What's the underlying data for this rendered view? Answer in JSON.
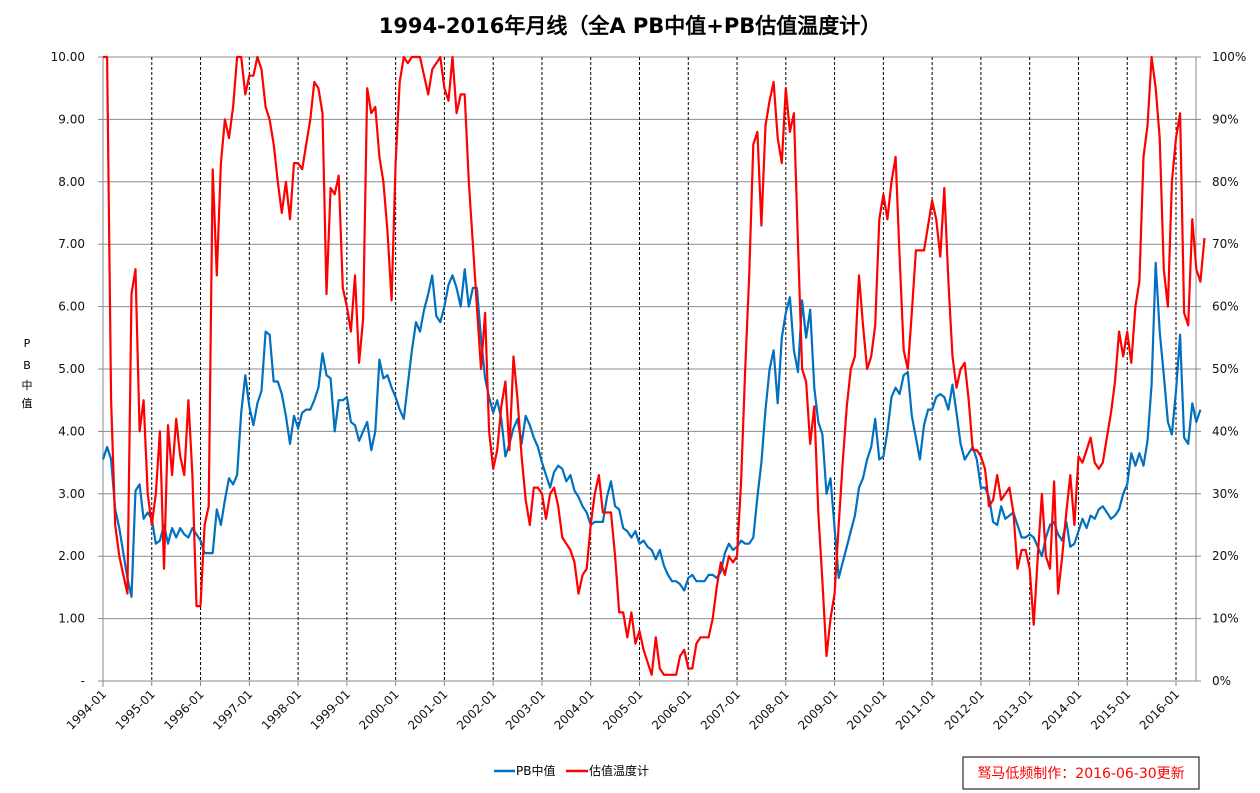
{
  "chart_data": {
    "type": "line",
    "title": "1994-2016年月线（全A PB中值+PB估值温度计）",
    "ylabel": "PB中值",
    "y2label": "",
    "xlabel": "",
    "ylim": [
      0,
      10
    ],
    "y2lim": [
      0,
      100
    ],
    "yticks": [
      "-",
      "1.00",
      "2.00",
      "3.00",
      "4.00",
      "5.00",
      "6.00",
      "7.00",
      "8.00",
      "9.00",
      "10.00"
    ],
    "y2ticks": [
      "0%",
      "10%",
      "20%",
      "30%",
      "40%",
      "50%",
      "60%",
      "70%",
      "80%",
      "90%",
      "100%"
    ],
    "xticks": [
      "1994-01",
      "1995-01",
      "1996-01",
      "1997-01",
      "1998-01",
      "1999-01",
      "2000-01",
      "2001-01",
      "2002-01",
      "2003-01",
      "2004-01",
      "2005-01",
      "2006-01",
      "2007-01",
      "2008-01",
      "2009-01",
      "2010-01",
      "2011-01",
      "2012-01",
      "2013-01",
      "2014-01",
      "2015-01",
      "2016-01"
    ],
    "x_start": "1994-01",
    "x_end": "2016-06",
    "grid": "horizontal solid, vertical dashed at each year",
    "legend": "bottom-center",
    "series": [
      {
        "name": "PB中值",
        "axis": "left",
        "color": "#0070c0",
        "values": [
          3.55,
          3.75,
          3.55,
          2.75,
          2.45,
          2.05,
          1.65,
          1.35,
          3.05,
          3.15,
          2.6,
          2.7,
          2.6,
          2.2,
          2.25,
          2.5,
          2.2,
          2.45,
          2.3,
          2.45,
          2.35,
          2.3,
          2.45,
          2.35,
          2.25,
          2.05,
          2.05,
          2.05,
          2.75,
          2.5,
          2.9,
          3.25,
          3.15,
          3.3,
          4.3,
          4.9,
          4.4,
          4.1,
          4.45,
          4.65,
          5.6,
          5.55,
          4.8,
          4.8,
          4.6,
          4.25,
          3.8,
          4.25,
          4.05,
          4.3,
          4.35,
          4.35,
          4.5,
          4.7,
          5.25,
          4.9,
          4.85,
          4.0,
          4.5,
          4.5,
          4.55,
          4.15,
          4.1,
          3.85,
          4.0,
          4.15,
          3.7,
          4.0,
          5.15,
          4.85,
          4.9,
          4.7,
          4.55,
          4.35,
          4.2,
          4.75,
          5.3,
          5.75,
          5.6,
          5.95,
          6.2,
          6.5,
          5.85,
          5.75,
          6.0,
          6.35,
          6.5,
          6.3,
          6.0,
          6.6,
          6.0,
          6.3,
          6.3,
          5.5,
          4.85,
          4.55,
          4.3,
          4.5,
          4.2,
          3.6,
          3.8,
          4.05,
          4.2,
          3.8,
          4.25,
          4.1,
          3.9,
          3.75,
          3.5,
          3.3,
          3.1,
          3.35,
          3.45,
          3.4,
          3.2,
          3.3,
          3.05,
          2.95,
          2.8,
          2.7,
          2.5,
          2.55,
          2.55,
          2.55,
          2.95,
          3.2,
          2.8,
          2.75,
          2.45,
          2.4,
          2.3,
          2.4,
          2.2,
          2.25,
          2.15,
          2.1,
          1.95,
          2.1,
          1.85,
          1.7,
          1.6,
          1.6,
          1.55,
          1.45,
          1.65,
          1.7,
          1.6,
          1.6,
          1.6,
          1.7,
          1.7,
          1.65,
          1.75,
          2.05,
          2.2,
          2.1,
          2.15,
          2.25,
          2.2,
          2.2,
          2.3,
          2.95,
          3.5,
          4.35,
          5.0,
          5.3,
          4.45,
          5.5,
          5.9,
          6.15,
          5.3,
          4.95,
          6.1,
          5.5,
          5.95,
          4.7,
          4.15,
          3.95,
          3.0,
          3.25,
          2.45,
          1.65,
          1.9,
          2.15,
          2.4,
          2.65,
          3.1,
          3.25,
          3.55,
          3.75,
          4.2,
          3.55,
          3.6,
          4.0,
          4.55,
          4.7,
          4.6,
          4.9,
          4.95,
          4.25,
          3.9,
          3.55,
          4.1,
          4.35,
          4.35,
          4.55,
          4.6,
          4.55,
          4.35,
          4.75,
          4.3,
          3.8,
          3.55,
          3.65,
          3.75,
          3.55,
          3.1,
          3.1,
          2.95,
          2.55,
          2.5,
          2.8,
          2.6,
          2.65,
          2.7,
          2.5,
          2.3,
          2.3,
          2.35,
          2.3,
          2.15,
          2.0,
          2.3,
          2.5,
          2.55,
          2.35,
          2.25,
          2.55,
          2.15,
          2.2,
          2.4,
          2.6,
          2.45,
          2.65,
          2.6,
          2.75,
          2.8,
          2.7,
          2.6,
          2.65,
          2.75,
          3.0,
          3.15,
          3.65,
          3.45,
          3.65,
          3.45,
          3.85,
          4.75,
          6.7,
          5.6,
          4.9,
          4.15,
          3.95,
          4.65,
          5.55,
          3.9,
          3.8,
          4.45,
          4.15,
          4.35
        ]
      },
      {
        "name": "估值温度计",
        "axis": "right",
        "color": "#ff0000",
        "values": [
          100,
          100,
          45,
          25,
          20,
          17,
          14,
          62,
          66,
          40,
          45,
          30,
          25,
          30,
          40,
          18,
          41,
          33,
          42,
          36,
          33,
          45,
          33,
          12,
          12,
          25,
          28,
          82,
          65,
          83,
          90,
          87,
          92,
          100,
          100,
          94,
          97,
          97,
          100,
          98,
          92,
          90,
          86,
          80,
          75,
          80,
          74,
          83,
          83,
          82,
          86,
          90,
          96,
          95,
          91,
          62,
          79,
          78,
          81,
          63,
          60,
          56,
          65,
          51,
          58,
          95,
          91,
          92,
          84,
          80,
          72,
          61,
          83,
          96,
          100,
          99,
          100,
          100,
          100,
          97,
          94,
          98,
          99,
          100,
          95,
          93,
          100,
          91,
          94,
          94,
          80,
          70,
          60,
          50,
          59,
          40,
          34,
          37,
          44,
          48,
          37,
          52,
          45,
          36,
          29,
          25,
          31,
          31,
          30,
          26,
          30,
          31,
          28,
          23,
          22,
          21,
          19,
          14,
          17,
          18,
          25,
          30,
          33,
          27,
          27,
          27,
          20,
          11,
          11,
          7,
          11,
          6,
          8,
          5,
          3,
          1,
          7,
          2,
          1,
          1,
          1,
          1,
          4,
          5,
          2,
          2,
          6,
          7,
          7,
          7,
          10,
          15,
          19,
          17,
          20,
          19,
          20,
          32,
          50,
          65,
          86,
          88,
          73,
          89,
          93,
          96,
          87,
          83,
          95,
          88,
          91,
          70,
          50,
          48,
          38,
          44,
          27,
          16,
          4,
          10,
          14,
          25,
          35,
          44,
          50,
          52,
          65,
          57,
          50,
          52,
          57,
          74,
          78,
          74,
          80,
          84,
          68,
          53,
          50,
          59,
          69,
          69,
          69,
          73,
          77,
          74,
          68,
          79,
          64,
          52,
          47,
          50,
          51,
          45,
          37,
          37,
          36,
          34,
          28,
          29,
          33,
          29,
          30,
          31,
          27,
          18,
          21,
          21,
          18,
          9,
          20,
          30,
          20,
          18,
          32,
          14,
          20,
          27,
          33,
          25,
          36,
          35,
          37,
          39,
          35,
          34,
          35,
          39,
          43,
          48,
          56,
          52,
          56,
          51,
          60,
          64,
          84,
          89,
          100,
          95,
          87,
          66,
          60,
          80,
          87,
          91,
          59,
          57,
          74,
          66,
          64,
          71
        ]
      }
    ]
  },
  "legend": {
    "items": [
      {
        "label": "PB中值",
        "color": "#0070c0"
      },
      {
        "label": "估值温度计",
        "color": "#ff0000"
      }
    ]
  },
  "credit": {
    "text": "驽马低频制作：2016-06-30更新"
  }
}
